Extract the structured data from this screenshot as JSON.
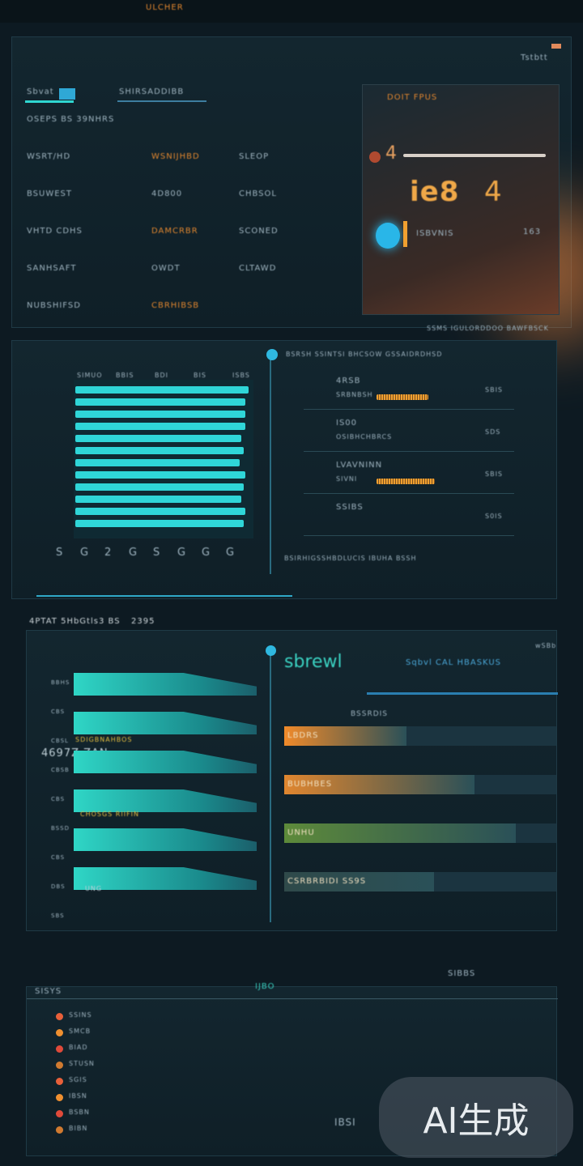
{
  "top_bar": {
    "label": "ULCHER"
  },
  "panel1": {
    "header_left": "Sbvat",
    "header_mid": "SHIRSADDIBB",
    "corner": "Tstbtt",
    "rows": [
      {
        "a": "OSEPS BS 39NHRS",
        "b": "",
        "c": ""
      },
      {
        "a": "WSRT/HD",
        "b": "WSNIJHBD",
        "c": "SLEOP"
      },
      {
        "a": "BSUWEST",
        "b": "4D800",
        "c": "CHBSOL"
      },
      {
        "a": "VHTD CDHS",
        "b": "DAMCRBR",
        "c": "SCONED"
      },
      {
        "a": "SANHSAFT",
        "b": "OWDT",
        "c": "CLTAWD"
      },
      {
        "a": "NUBSHIFSD",
        "b": "CBRHIBSB",
        "c": ""
      }
    ],
    "card": {
      "big_value": "ie8",
      "big_value2": "4",
      "sub": "DOIT FPUS",
      "label": "ISBVNIS",
      "right": "163"
    }
  },
  "panel2": {
    "caption": "SSMS IGULORDDOO BAWFBSCK",
    "chart_header": [
      "SIMUO",
      "BBIS",
      "BDI",
      "BIS",
      "ISBS"
    ],
    "bars": [
      1,
      0.98,
      0.98,
      0.98,
      0.96,
      0.97,
      0.95,
      0.98,
      0.97,
      0.96,
      0.98,
      0.97
    ],
    "x_ticks": [
      "S",
      "G",
      "2",
      "G",
      "S",
      "G",
      "G",
      "G"
    ],
    "list_header": "BSRSH SSINTSI  BHCSOW GSSAIDRDHSD",
    "list": [
      {
        "label": "4RSB",
        "sub": "SRBNBSH",
        "val": "SBIS",
        "bar": 0.8
      },
      {
        "label": "IS00",
        "sub": "OSIBHCHBRCS",
        "val": "SDS",
        "bar": 0
      },
      {
        "label": "LVAVNINN",
        "sub": "SIVNI",
        "val": "SBIS",
        "bar": 0.9
      },
      {
        "label": "SSIBS",
        "sub": "",
        "val": "S0IS",
        "bar": 0
      }
    ],
    "footer": "BSIRHIGSSHBDLUCIS IBUHA BSSH"
  },
  "section_title": "4PTAT 5HbGtls3 BS",
  "section_badge": "2395",
  "panel3": {
    "left_axis": [
      "BBHS",
      "CBS",
      "CBSL",
      "CBSB",
      "CBS",
      "BSSD",
      "CBS",
      "DBS",
      "SBS"
    ],
    "left_label": "4697Z ZAN",
    "wedge_labels": [
      "SDIGBNAHBOS",
      "CHOSGS RIIFIN",
      "UNG"
    ],
    "title": "sbrewl",
    "title_sub": "Sqbvl CAL HBASKUS",
    "corner": "wSBb",
    "rows": [
      {
        "label": "LBDRS",
        "sub": "BSSRDIS",
        "color": "#f08a2a",
        "fill": 0.45
      },
      {
        "label": "BUBHBES",
        "sub": "",
        "color": "#e0862f",
        "fill": 0.7
      },
      {
        "label": "UNHU",
        "sub": "",
        "color": "#5d8a3a",
        "fill": 0.85
      },
      {
        "label": "CSRBRBIDI SS9S",
        "sub": "",
        "color": "#2f4a4a",
        "fill": 0.55
      }
    ]
  },
  "panel4": {
    "header_left": "SISYS",
    "header_mid": "IJBO",
    "header_right": "SIBBS",
    "footer": "IBSI",
    "items": [
      "SSINS",
      "SMCB",
      "BIAD",
      "STUSN",
      "SGIS",
      "IBSN",
      "BSBN",
      "BIBN"
    ]
  },
  "watermark": "AI生成",
  "colors": {
    "accent": "#2fd6d0",
    "orange": "#f08a2a",
    "bg": "#0d1a22"
  }
}
